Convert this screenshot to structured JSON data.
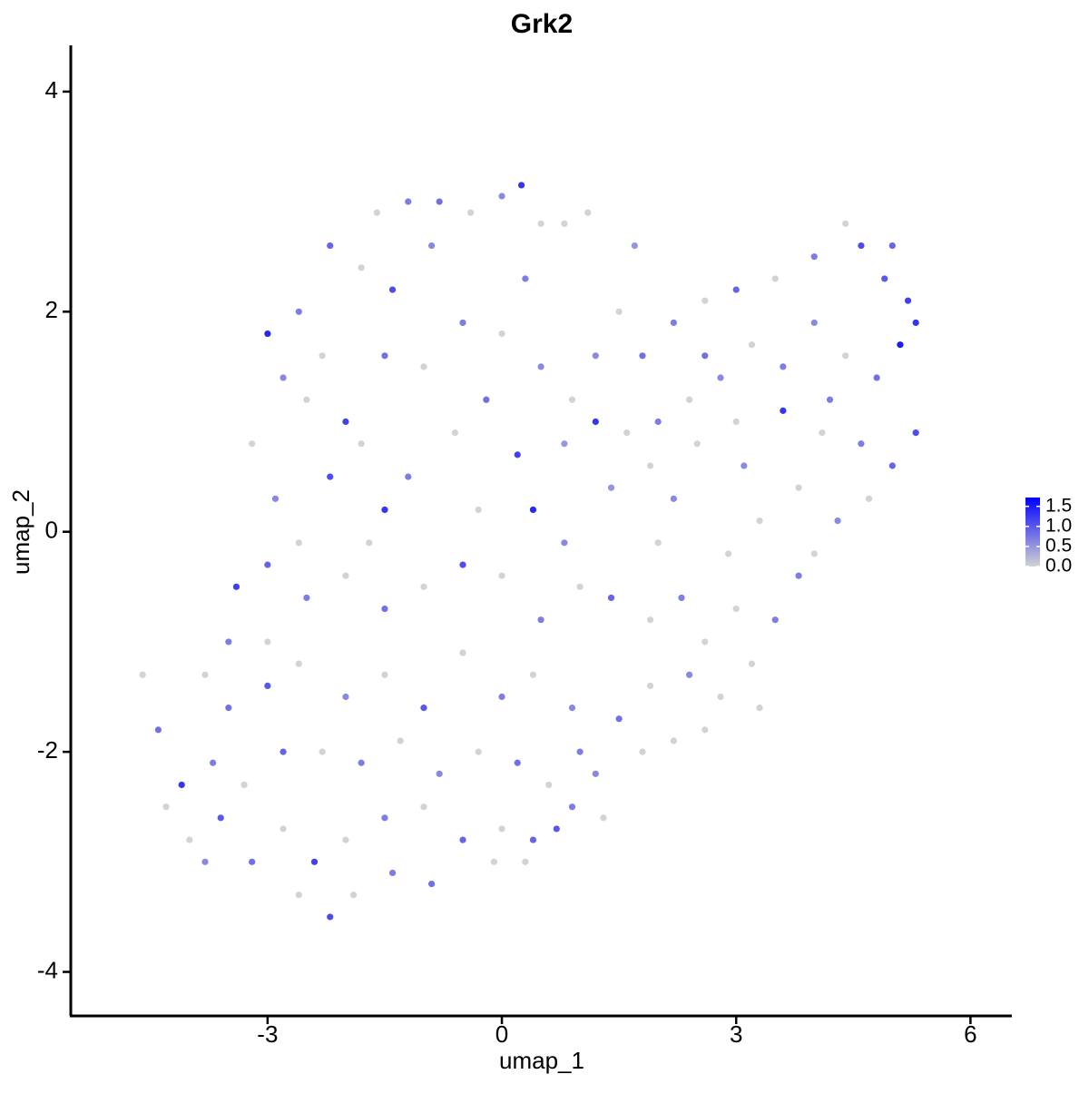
{
  "chart_data": {
    "type": "scatter",
    "title": "Grk2",
    "x_label": "umap_1",
    "y_label": "umap_2",
    "xlim": [
      -5.52,
      6.53
    ],
    "ylim": [
      -4.4,
      4.42
    ],
    "xticks": [
      -3,
      0,
      3,
      6
    ],
    "yticks": [
      -4,
      -2,
      0,
      2,
      4
    ],
    "colors": [
      "#d3d3d3",
      "#0000ff"
    ],
    "clim": [
      0,
      1.72
    ],
    "cticks": [
      {
        "value": 0,
        "label": "0.0"
      },
      0.5,
      {
        "value": 1,
        "label": "1.0"
      },
      1.5
    ],
    "legend": "right",
    "x": [
      -2.2,
      -1.6,
      -1.2,
      -0.8,
      -0.4,
      0.0,
      0.25,
      0.5,
      0.8,
      1.1,
      -2.6,
      -3.0,
      -2.8,
      -2.5,
      -2.0,
      -1.5,
      -1.0,
      -0.5,
      0.0,
      0.5,
      0.9,
      -2.2,
      -1.8,
      -1.2,
      -0.6,
      0.2,
      0.8,
      1.2,
      -3.2,
      -2.9,
      -1.4,
      -0.9,
      -1.8,
      0.3,
      -2.3,
      -0.2,
      0.4,
      -0.3,
      -1.5,
      -2.6,
      -3.0,
      -3.4,
      -3.0,
      -2.5,
      -2.0,
      -1.5,
      -1.0,
      -0.5,
      0.0,
      0.5,
      1.0,
      -3.8,
      -3.5,
      -3.0,
      -2.6,
      -2.0,
      -1.5,
      -1.0,
      -0.5,
      0.0,
      0.4,
      0.9,
      -4.6,
      -4.4,
      -4.1,
      -3.7,
      -3.3,
      -2.8,
      -2.3,
      -1.8,
      -1.3,
      -0.8,
      -0.3,
      0.2,
      0.6,
      1.0,
      -4.0,
      -3.6,
      -3.2,
      -2.8,
      -2.4,
      -2.0,
      -1.5,
      -1.0,
      -0.5,
      0.0,
      0.4,
      0.7,
      -2.6,
      -2.2,
      -1.9,
      -1.4,
      -0.1,
      -3.8,
      -4.3,
      -3.5,
      -1.7,
      0.8,
      0.3,
      -0.9,
      1.5,
      1.2,
      1.8,
      2.2,
      2.6,
      3.0,
      3.5,
      4.0,
      4.4,
      4.6,
      4.9,
      5.2,
      5.3,
      5.1,
      4.8,
      4.4,
      4.0,
      3.6,
      3.2,
      2.8,
      2.4,
      2.0,
      1.6,
      1.4,
      1.9,
      2.5,
      3.1,
      3.6,
      4.1,
      4.6,
      5.0,
      5.3,
      4.7,
      4.3,
      3.8,
      3.3,
      2.9,
      4.0,
      1.7,
      2.6,
      5.0,
      4.2,
      3.0,
      2.2,
      1.4,
      1.9,
      2.3,
      2.6,
      3.0,
      3.5,
      3.2,
      2.8,
      2.4,
      1.9,
      1.5,
      1.2,
      1.8,
      2.2,
      2.6,
      0.9,
      1.3,
      3.8,
      3.3,
      2.0
    ],
    "y": [
      2.6,
      2.9,
      3.0,
      3.0,
      2.9,
      3.05,
      3.15,
      2.8,
      2.8,
      2.9,
      2.0,
      1.8,
      1.4,
      1.2,
      1.0,
      1.6,
      1.5,
      1.9,
      1.8,
      1.5,
      1.2,
      0.5,
      0.8,
      0.5,
      0.9,
      0.7,
      0.8,
      1.0,
      0.8,
      0.3,
      2.2,
      2.6,
      2.4,
      2.3,
      1.6,
      1.2,
      0.2,
      0.2,
      0.2,
      -0.1,
      -0.3,
      -0.5,
      -1.0,
      -0.6,
      -0.4,
      -0.7,
      -0.5,
      -0.3,
      -0.4,
      -0.8,
      -0.5,
      -1.3,
      -1.6,
      -1.4,
      -1.2,
      -1.5,
      -1.3,
      -1.6,
      -1.1,
      -1.5,
      -1.3,
      -1.6,
      -1.3,
      -1.8,
      -2.3,
      -2.1,
      -2.3,
      -2.0,
      -2.0,
      -2.1,
      -1.9,
      -2.2,
      -2.0,
      -2.1,
      -2.3,
      -2.0,
      -2.8,
      -2.6,
      -3.0,
      -2.7,
      -3.0,
      -2.8,
      -2.6,
      -2.5,
      -2.8,
      -2.7,
      -2.8,
      -2.7,
      -3.3,
      -3.5,
      -3.3,
      -3.1,
      -3.0,
      -3.0,
      -2.5,
      -1.0,
      -0.1,
      -0.1,
      -3.0,
      -3.2,
      2.0,
      1.6,
      1.6,
      1.9,
      2.1,
      2.2,
      2.3,
      2.5,
      2.8,
      2.6,
      2.3,
      2.1,
      1.9,
      1.7,
      1.4,
      1.6,
      1.9,
      1.5,
      1.7,
      1.4,
      1.2,
      1.0,
      0.9,
      0.4,
      0.6,
      0.8,
      0.6,
      1.1,
      0.9,
      0.8,
      0.6,
      0.9,
      0.3,
      0.1,
      0.4,
      0.1,
      -0.2,
      -0.2,
      2.6,
      1.6,
      2.6,
      1.2,
      1.0,
      0.3,
      -0.6,
      -0.8,
      -0.6,
      -1.0,
      -0.7,
      -0.8,
      -1.2,
      -1.5,
      -1.3,
      -1.4,
      -1.7,
      -2.2,
      -2.0,
      -1.9,
      -1.8,
      -2.5,
      -2.6,
      -0.4,
      -1.6,
      -0.1
    ],
    "values": [
      0.9,
      0,
      0.7,
      0.8,
      0,
      0.6,
      1.3,
      0,
      0,
      0,
      0.7,
      1.4,
      0.6,
      0,
      1.2,
      0.8,
      0,
      0.7,
      0,
      0.6,
      0,
      1.1,
      0,
      0.7,
      0,
      1.2,
      0.5,
      1.3,
      0,
      0.6,
      1.1,
      0.6,
      0,
      0.7,
      0,
      0.8,
      1.4,
      0,
      1.3,
      0,
      0.9,
      1.2,
      0,
      0.7,
      0,
      0.8,
      0,
      1.1,
      0,
      0.7,
      0,
      0,
      0.8,
      1.0,
      0,
      0.6,
      0,
      1.0,
      0,
      0.7,
      0,
      0.6,
      0,
      0.8,
      1.3,
      0.7,
      0,
      0.9,
      0,
      0.7,
      0,
      0.6,
      0,
      0.8,
      0,
      0.7,
      0,
      1.0,
      0.8,
      0,
      1.2,
      0,
      0.7,
      0,
      0.9,
      0,
      0.9,
      1.0,
      0,
      1.1,
      0,
      0.7,
      0,
      0.6,
      0,
      0.7,
      0,
      0.6,
      0,
      0.8,
      0,
      0.6,
      0.8,
      0.7,
      0,
      0.9,
      0,
      0.7,
      0,
      1.1,
      1.0,
      1.2,
      1.3,
      1.5,
      0.8,
      0,
      0.6,
      0.7,
      0,
      0.6,
      0,
      0.7,
      0,
      0.5,
      0,
      0,
      0.6,
      1.3,
      0,
      0.7,
      0.9,
      1.1,
      0,
      0.6,
      0,
      0,
      0,
      0,
      0.5,
      0.8,
      0.9,
      0.7,
      0,
      0.6,
      0.9,
      0,
      0.7,
      0,
      0,
      0.7,
      0,
      0,
      0.6,
      0,
      0.8,
      0.6,
      0,
      0,
      0,
      0.7,
      0,
      0.7,
      0,
      0
    ]
  }
}
